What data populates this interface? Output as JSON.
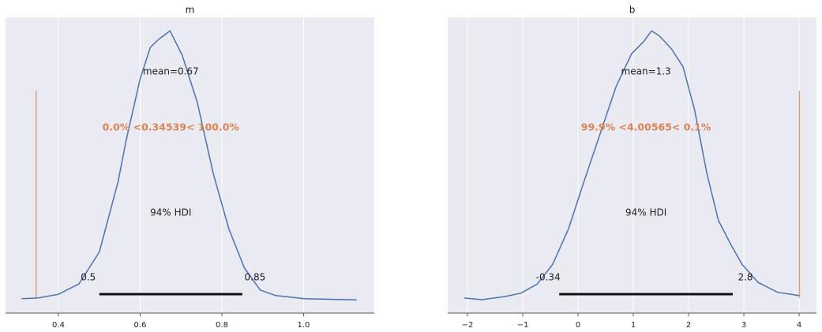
{
  "chart_data": [
    {
      "type": "density",
      "title": "m",
      "color": "#4c72b0",
      "x": [
        0.31,
        0.35,
        0.4,
        0.45,
        0.5,
        0.546,
        0.565,
        0.6,
        0.625,
        0.645,
        0.673,
        0.703,
        0.74,
        0.779,
        0.817,
        0.855,
        0.894,
        0.932,
        1.0,
        1.13
      ],
      "values": [
        0.03,
        0.04,
        0.1,
        0.27,
        0.79,
        1.94,
        2.59,
        3.62,
        4.13,
        4.26,
        4.4,
        4.0,
        3.23,
        2.07,
        1.17,
        0.53,
        0.17,
        0.08,
        0.03,
        0.01
      ],
      "xlim": [
        0.2705,
        1.173
      ],
      "ylim": [
        -0.206,
        4.62
      ],
      "xticks": [
        0.4,
        0.6,
        0.8,
        {
          "value": 1,
          "label": "1.0"
        }
      ],
      "grid": true,
      "mean_label": "mean=0.67",
      "ref_val": 0.34539,
      "ref_color": "#dd8452",
      "ref_label": "0.0% <0.34539< 100.0%",
      "hdi": [
        0.5,
        0.85
      ],
      "hdi_label": "94% HDI"
    },
    {
      "type": "density",
      "title": "b",
      "color": "#4c72b0",
      "x": [
        -2.06,
        -1.74,
        -1.31,
        -1.03,
        -0.74,
        -0.46,
        -0.17,
        0.11,
        0.4,
        0.69,
        0.97,
        1.19,
        1.33,
        1.47,
        1.69,
        1.9,
        2.11,
        2.33,
        2.54,
        2.76,
        2.97,
        3.26,
        3.61,
        4.0
      ],
      "values": [
        0.003,
        0.001,
        0.005,
        0.009,
        0.02,
        0.044,
        0.088,
        0.146,
        0.204,
        0.262,
        0.302,
        0.317,
        0.33,
        0.324,
        0.308,
        0.286,
        0.233,
        0.156,
        0.098,
        0.069,
        0.044,
        0.022,
        0.01,
        0.006
      ],
      "xlim": [
        -2.357,
        4.314
      ],
      "ylim": [
        -0.0154,
        0.3465
      ],
      "xticks": [
        {
          "value": -2,
          "label": "−2"
        },
        {
          "value": -1,
          "label": "−1"
        },
        0,
        1,
        2,
        3,
        4
      ],
      "grid": true,
      "mean_label": "mean=1.3",
      "ref_val": 4.00565,
      "ref_color": "#dd8452",
      "ref_label": "99.9% <4.00565< 0.1%",
      "hdi": [
        -0.34,
        2.8
      ],
      "hdi_label": "94% HDI"
    }
  ]
}
